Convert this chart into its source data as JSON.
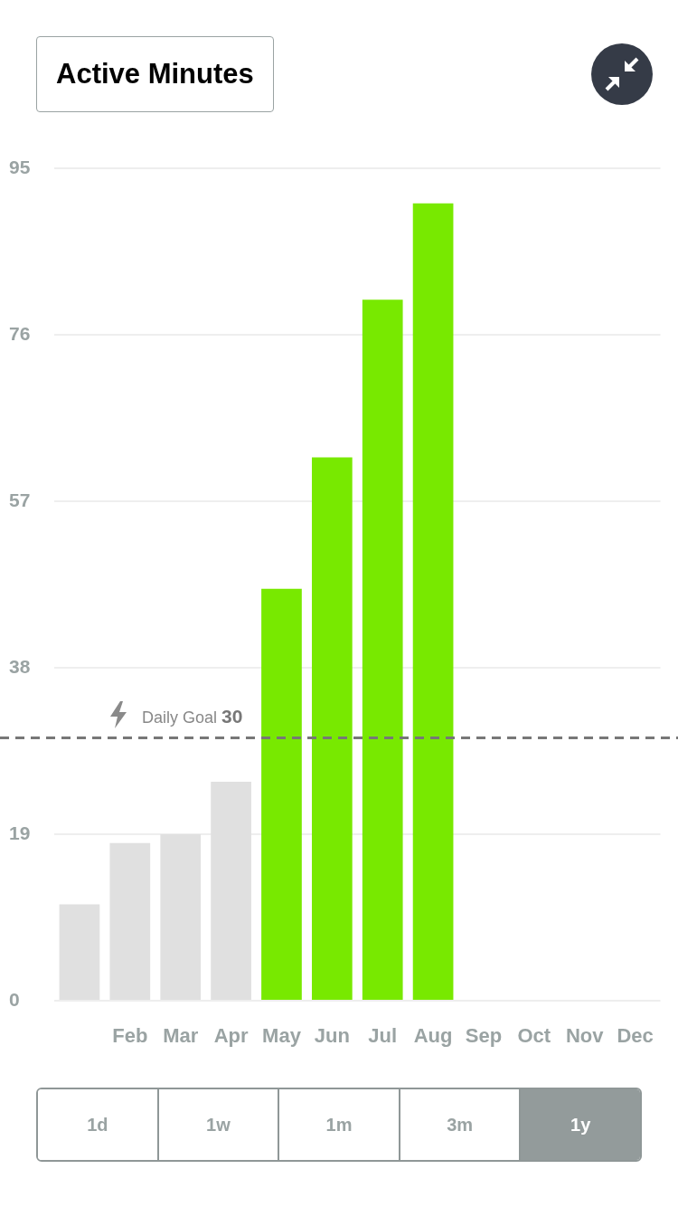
{
  "chart_data": {
    "type": "bar",
    "title": "Active Minutes",
    "categories": [
      null,
      "Feb",
      "Mar",
      "Apr",
      "May",
      "Jun",
      "Jul",
      "Aug",
      "Sep",
      "Oct",
      "Nov",
      "Dec"
    ],
    "values": [
      11,
      18,
      19,
      25,
      47,
      62,
      80,
      91,
      null,
      null,
      null,
      null
    ],
    "colors": [
      "#e0e0e0",
      "#e0e0e0",
      "#e0e0e0",
      "#e0e0e0",
      "#78e900",
      "#78e900",
      "#78e900",
      "#78e900",
      "#e0e0e0",
      "#e0e0e0",
      "#e0e0e0",
      "#e0e0e0"
    ],
    "ylim": [
      0,
      95
    ],
    "yticks": [
      0,
      19,
      38,
      57,
      76,
      95
    ],
    "grid": "y",
    "ref_lines": [
      {
        "axis": "y",
        "value": 30,
        "label": "Daily Goal",
        "color": "#777777",
        "line_style": "dashed"
      }
    ],
    "annotations": [
      {
        "text": "30",
        "y": 30
      },
      "1d",
      "1w",
      "1m",
      "3m",
      "1y"
    ]
  }
}
